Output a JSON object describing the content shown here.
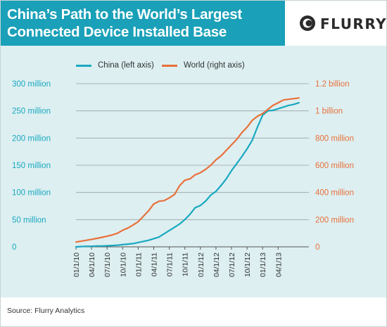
{
  "header": {
    "title_line1": "China’s Path to the World’s Largest",
    "title_line2": "Connected Device Installed Base",
    "logo_text": "FLURRY"
  },
  "footer": {
    "source": "Source: Flurry Analytics"
  },
  "colors": {
    "header_bg": "#1aa0b8",
    "chart_bg": "#ddeff1",
    "china": "#1aa8c0",
    "world": "#e8703a"
  },
  "chart_data": {
    "type": "line",
    "x_tick_labels": [
      "01/1/10",
      "04/1/10",
      "07/1/10",
      "10/1/10",
      "01/1/11",
      "04/1/11",
      "07/1/11",
      "10/1/11",
      "01/1/12",
      "04/1/12",
      "07/1/12",
      "10/1/12",
      "01/1/13",
      "04/1/13"
    ],
    "left_axis": {
      "ticks": [
        0,
        50,
        100,
        150,
        200,
        250,
        300
      ],
      "tick_labels": [
        "0",
        "50 million",
        "100 million",
        "150 million",
        "200 million",
        "250 million",
        "300 million"
      ],
      "range": [
        0,
        300
      ],
      "unit": "million"
    },
    "right_axis": {
      "ticks": [
        0,
        200,
        400,
        600,
        800,
        1000,
        1200
      ],
      "tick_labels": [
        "0",
        "200 million",
        "400 million",
        "600 million",
        "800 million",
        "1 billion",
        "1.2 billion"
      ],
      "range": [
        0,
        1200
      ],
      "unit": "million"
    },
    "series": [
      {
        "name": "China (left axis)",
        "axis": "left",
        "x_months": [
          0,
          1,
          2,
          3,
          4,
          5,
          6,
          7,
          8,
          9,
          10,
          11,
          12,
          13,
          14,
          15,
          16,
          17,
          18,
          19,
          20,
          21,
          22,
          23,
          24,
          25,
          26,
          27,
          28,
          29,
          30,
          31,
          32,
          33,
          34,
          35,
          36,
          37,
          38,
          39,
          40,
          41,
          42,
          43
        ],
        "values": [
          0,
          0.5,
          1,
          1,
          1.5,
          1.5,
          2,
          2.5,
          3,
          4,
          5,
          6,
          8,
          10,
          12,
          15,
          18,
          24,
          30,
          36,
          42,
          50,
          60,
          72,
          76,
          84,
          95,
          102,
          113,
          125,
          140,
          153,
          166,
          180,
          196,
          220,
          242,
          250,
          251,
          254,
          257,
          260,
          262,
          265
        ],
        "color": "#1aa8c0"
      },
      {
        "name": "World (right axis)",
        "axis": "right",
        "x_months": [
          0,
          1,
          2,
          3,
          4,
          5,
          6,
          7,
          8,
          9,
          10,
          11,
          12,
          13,
          14,
          15,
          16,
          17,
          18,
          19,
          20,
          21,
          22,
          23,
          24,
          25,
          26,
          27,
          28,
          29,
          30,
          31,
          32,
          33,
          34,
          35,
          36,
          37,
          38,
          39,
          40,
          41,
          42,
          43
        ],
        "values": [
          35,
          42,
          48,
          55,
          62,
          70,
          78,
          88,
          100,
          122,
          138,
          160,
          185,
          225,
          265,
          315,
          335,
          340,
          360,
          385,
          450,
          490,
          500,
          530,
          545,
          570,
          600,
          640,
          670,
          710,
          750,
          790,
          840,
          880,
          930,
          960,
          980,
          1010,
          1040,
          1060,
          1080,
          1085,
          1090,
          1095
        ],
        "color": "#e8703a"
      }
    ],
    "grid": "horizontal",
    "legend_position": "top-center"
  }
}
